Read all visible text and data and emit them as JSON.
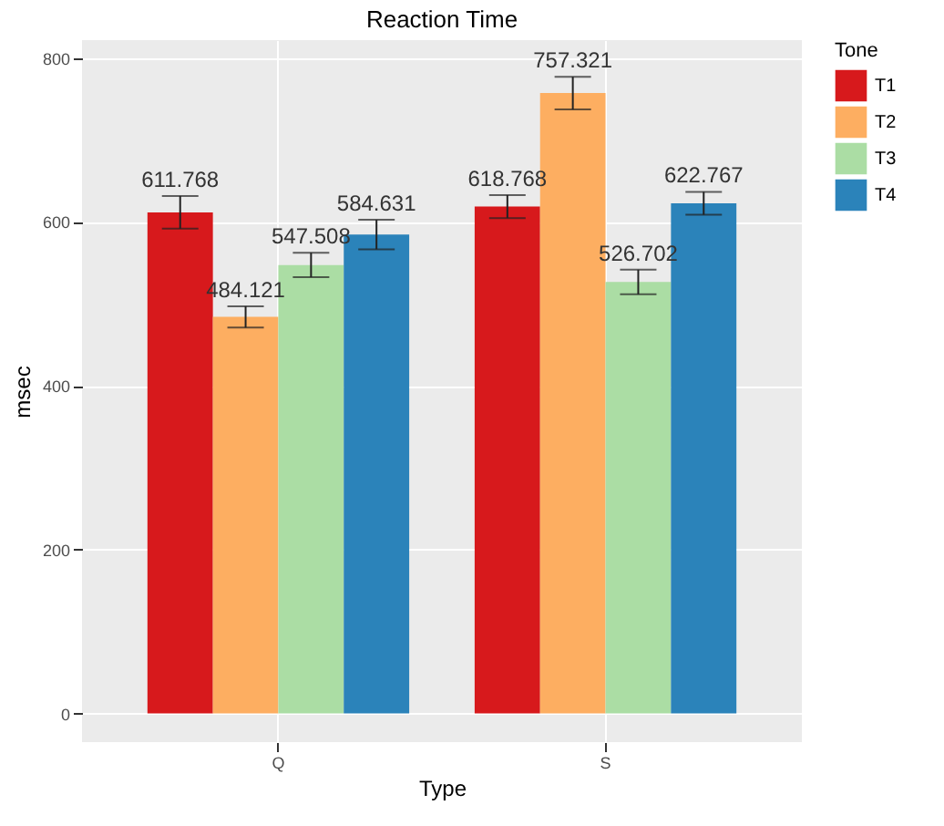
{
  "chart_data": {
    "type": "bar",
    "title": "Reaction Time",
    "xlabel": "Type",
    "ylabel": "msec",
    "legend_title": "Tone",
    "categories": [
      "Q",
      "S"
    ],
    "series": [
      {
        "name": "T1",
        "color": "#d7191c",
        "values": [
          611.768,
          618.768
        ],
        "errors": [
          20,
          14
        ]
      },
      {
        "name": "T2",
        "color": "#fdae61",
        "values": [
          484.121,
          757.321
        ],
        "errors": [
          13,
          20
        ]
      },
      {
        "name": "T3",
        "color": "#abdda4",
        "values": [
          547.508,
          526.702
        ],
        "errors": [
          15,
          15
        ]
      },
      {
        "name": "T4",
        "color": "#2b83ba",
        "values": [
          584.631,
          622.767
        ],
        "errors": [
          18,
          14
        ]
      }
    ],
    "ylim": [
      -35,
      822
    ],
    "yticks": [
      0,
      200,
      400,
      600,
      800
    ],
    "grid": true,
    "legend": "right",
    "data_labels": true
  }
}
